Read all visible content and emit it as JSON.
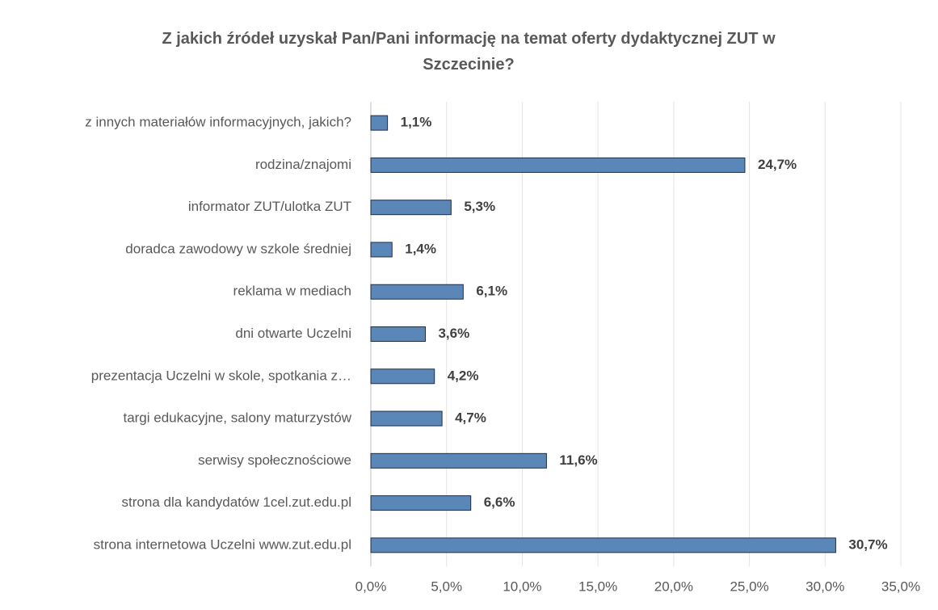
{
  "chart_data": {
    "type": "bar",
    "orientation": "horizontal",
    "title": "Z jakich źródeł uzyskał Pan/Pani informację na temat oferty dydaktycznej ZUT w Szczecinie?",
    "categories": [
      "z innych materiałów informacyjnych, jakich?",
      "rodzina/znajomi",
      "informator ZUT/ulotka ZUT",
      "doradca zawodowy w szkole średniej",
      "reklama w mediach",
      "dni otwarte Uczelni",
      "prezentacja Uczelni w skole, spotkania z…",
      "targi edukacyjne, salony maturzystów",
      "serwisy społecznościowe",
      "strona dla kandydatów 1cel.zut.edu.pl",
      "strona internetowa Uczelni www.zut.edu.pl"
    ],
    "values": [
      1.1,
      24.7,
      5.3,
      1.4,
      6.1,
      3.6,
      4.2,
      4.7,
      11.6,
      6.6,
      30.7
    ],
    "value_labels": [
      "1,1%",
      "24,7%",
      "5,3%",
      "1,4%",
      "6,1%",
      "3,6%",
      "4,2%",
      "4,7%",
      "11,6%",
      "6,6%",
      "30,7%"
    ],
    "color": "#5b87b8",
    "xlim": [
      0,
      35
    ],
    "xticks": [
      {
        "value": 0,
        "label": "0,0%"
      },
      {
        "value": 5,
        "label": "5,0%"
      },
      {
        "value": 10,
        "label": "10,0%"
      },
      {
        "value": 15,
        "label": "15,0%"
      },
      {
        "value": 20,
        "label": "20,0%"
      },
      {
        "value": 25,
        "label": "25,0%"
      },
      {
        "value": 30,
        "label": "30,0%"
      },
      {
        "value": 35,
        "label": "35,0%"
      }
    ],
    "grid": true
  }
}
